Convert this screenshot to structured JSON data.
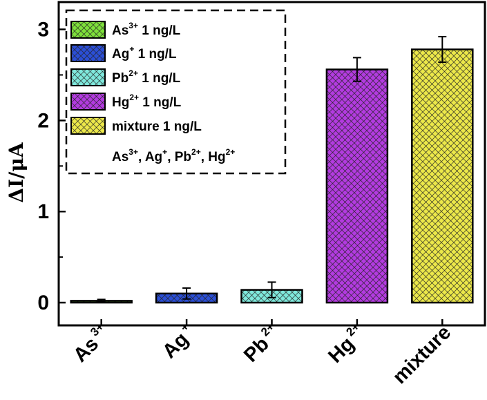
{
  "chart_data": {
    "type": "bar",
    "categories": [
      {
        "base": "As",
        "sup": "3+"
      },
      {
        "base": "Ag",
        "sup": "+"
      },
      {
        "base": "Pb",
        "sup": "2+"
      },
      {
        "base": "Hg",
        "sup": "2+"
      },
      {
        "base": "mixture",
        "sup": ""
      }
    ],
    "values": [
      0.02,
      0.1,
      0.14,
      2.56,
      2.78
    ],
    "errors": [
      0.015,
      0.06,
      0.085,
      0.13,
      0.14
    ],
    "colors": [
      "#7ee03a",
      "#2b4fd6",
      "#7fe8dc",
      "#b33be0",
      "#ece84a"
    ],
    "ylabel": "ΔI/μA",
    "ylim": [
      -0.25,
      3.3
    ],
    "yticks": [
      0,
      1,
      2,
      3
    ],
    "xlabel": "",
    "title": "",
    "grid": false,
    "pattern": "crosshatch",
    "legend": {
      "placement": "top-left",
      "entries": [
        {
          "parts": [
            {
              "t": "As",
              "s": false
            },
            {
              "t": "3+",
              "s": true
            },
            {
              "t": "  1 ng/L",
              "s": false
            }
          ]
        },
        {
          "parts": [
            {
              "t": "Ag",
              "s": false
            },
            {
              "t": "+",
              "s": true
            },
            {
              "t": "  1 ng/L",
              "s": false
            }
          ]
        },
        {
          "parts": [
            {
              "t": "Pb",
              "s": false
            },
            {
              "t": "2+",
              "s": true
            },
            {
              "t": "  1 ng/L",
              "s": false
            }
          ]
        },
        {
          "parts": [
            {
              "t": "Hg",
              "s": false
            },
            {
              "t": "2+",
              "s": true
            },
            {
              "t": "  1 ng/L",
              "s": false
            }
          ]
        },
        {
          "parts": [
            {
              "t": "mixture  1 ng/L",
              "s": false
            }
          ]
        }
      ],
      "note": [
        {
          "t": "As",
          "s": false
        },
        {
          "t": "3+",
          "s": true
        },
        {
          "t": ", Ag",
          "s": false
        },
        {
          "t": "+",
          "s": true
        },
        {
          "t": ", Pb",
          "s": false
        },
        {
          "t": "2+",
          "s": true
        },
        {
          "t": ", Hg",
          "s": false
        },
        {
          "t": "2+",
          "s": true
        }
      ]
    }
  }
}
